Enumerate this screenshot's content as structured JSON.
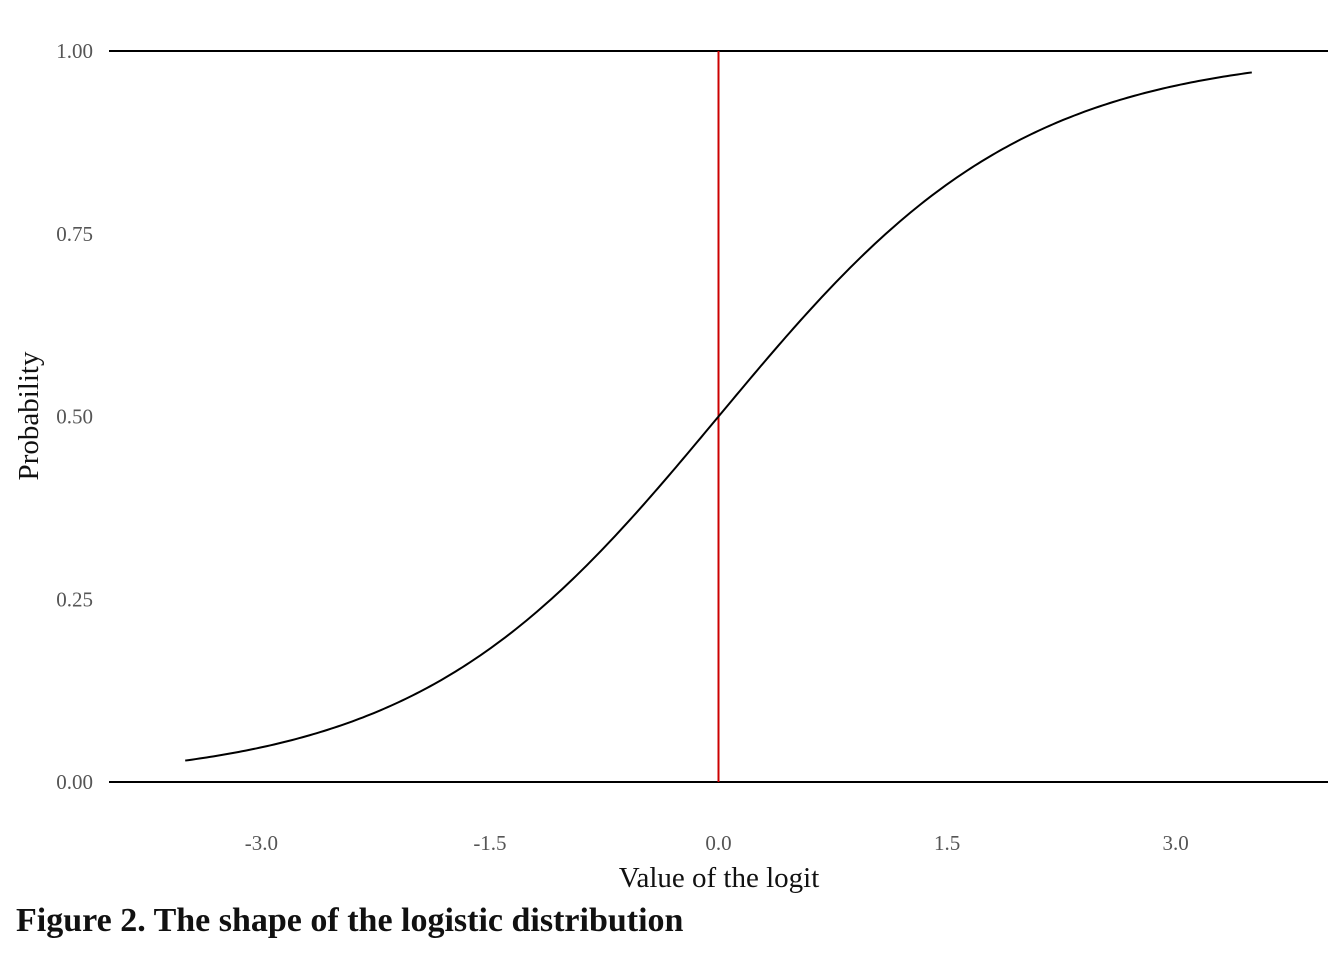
{
  "chart_data": {
    "type": "line",
    "caption": "Figure 2. The shape of the logistic distribution",
    "xlabel": "Value of the logit",
    "ylabel": "Probability",
    "xlim": [
      -4.0,
      4.0
    ],
    "ylim": [
      0.0,
      1.0
    ],
    "xticks": [
      -3.0,
      -1.5,
      0.0,
      1.5,
      3.0
    ],
    "xtick_labels": [
      "-3.0",
      "-1.5",
      "0.0",
      "1.5",
      "3.0"
    ],
    "yticks": [
      0.0,
      0.25,
      0.5,
      0.75,
      1.0
    ],
    "ytick_labels": [
      "0.00",
      "0.25",
      "0.50",
      "0.75",
      "1.00"
    ],
    "grid": false,
    "horizontal_lines": [
      0.0,
      1.0
    ],
    "vertical_line": {
      "x": 0.0,
      "color": "#cc0000"
    },
    "series": [
      {
        "function": "logistic",
        "color": "#000000",
        "x": [
          -3.5,
          -3.25,
          -3.0,
          -2.75,
          -2.5,
          -2.25,
          -2.0,
          -1.75,
          -1.5,
          -1.25,
          -1.0,
          -0.75,
          -0.5,
          -0.25,
          0.0,
          0.25,
          0.5,
          0.75,
          1.0,
          1.25,
          1.5,
          1.75,
          2.0,
          2.25,
          2.5,
          2.75,
          3.0,
          3.25,
          3.5
        ],
        "y": [
          0.029,
          0.037,
          0.047,
          0.06,
          0.076,
          0.095,
          0.119,
          0.148,
          0.182,
          0.223,
          0.269,
          0.321,
          0.378,
          0.438,
          0.5,
          0.562,
          0.622,
          0.679,
          0.731,
          0.777,
          0.818,
          0.852,
          0.881,
          0.905,
          0.924,
          0.94,
          0.953,
          0.963,
          0.971
        ]
      }
    ]
  }
}
